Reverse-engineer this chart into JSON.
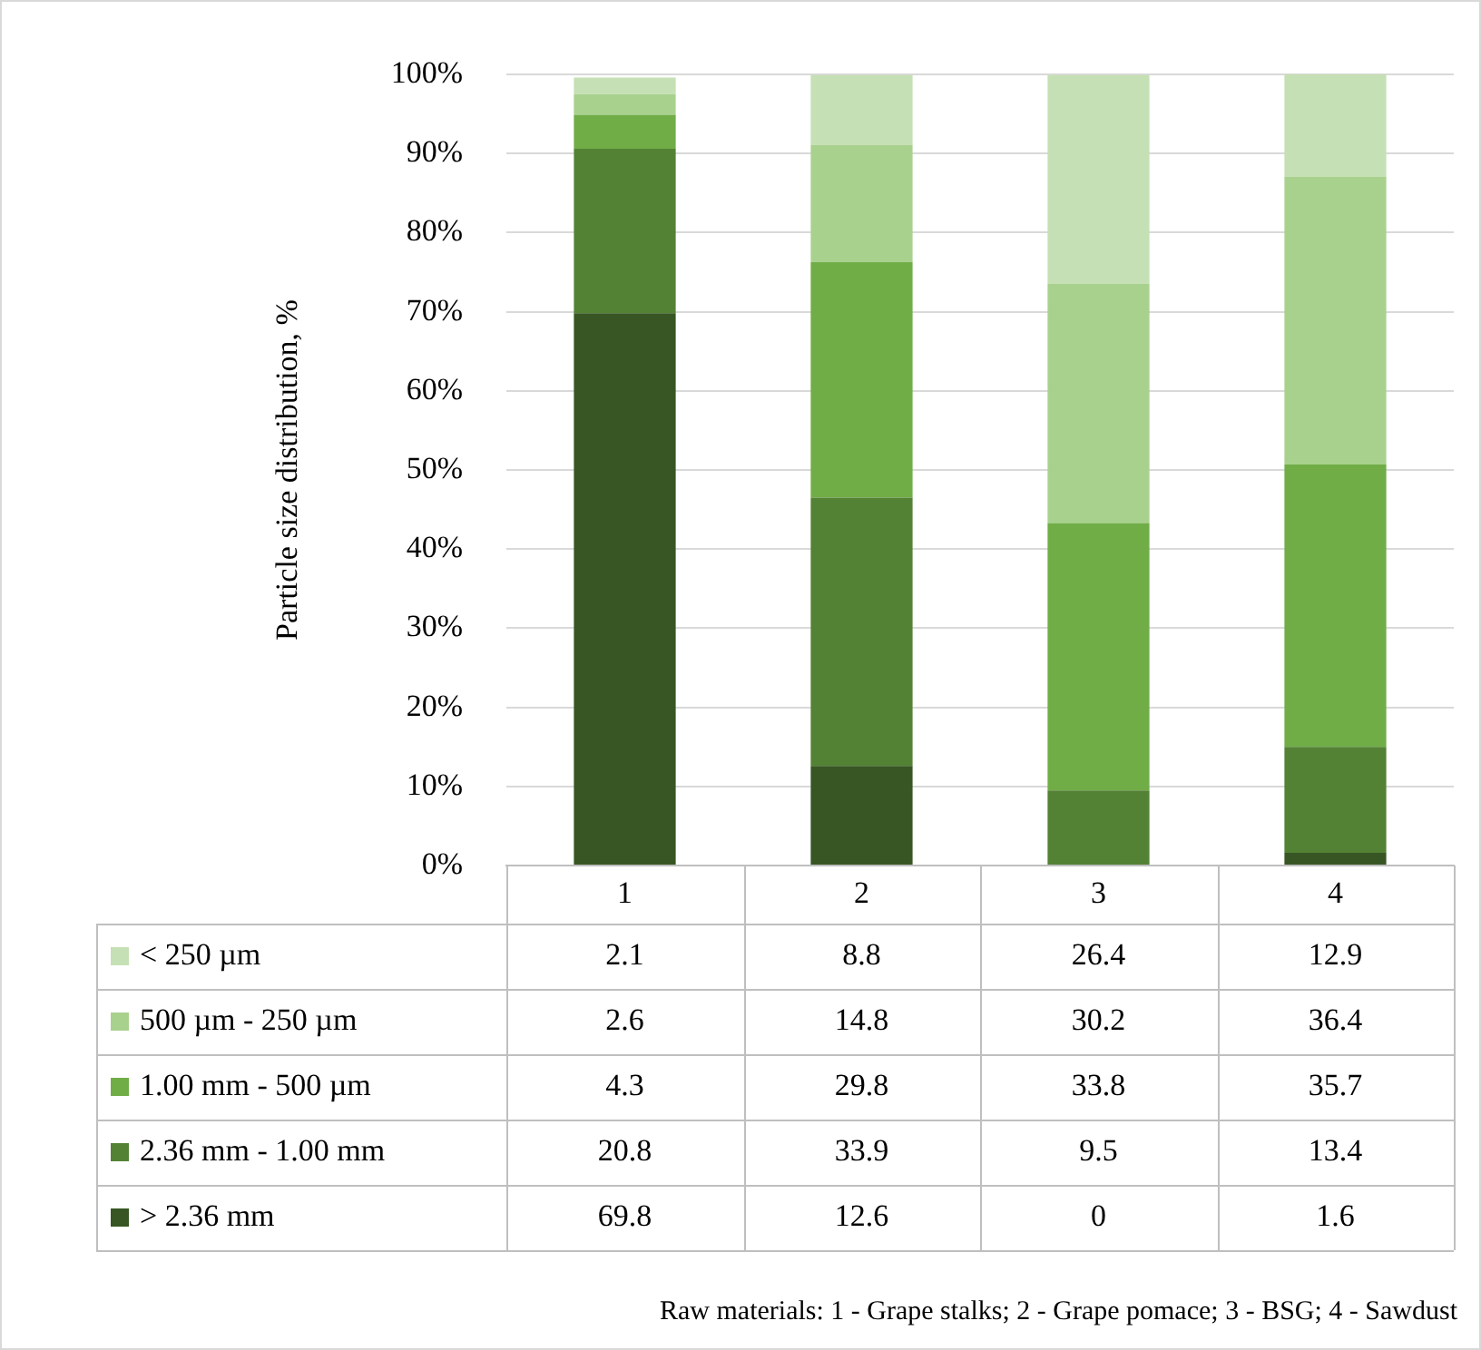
{
  "chart_data": {
    "type": "bar",
    "stacked": true,
    "ylabel": "Particle size distribution, %",
    "categories": [
      "1",
      "2",
      "3",
      "4"
    ],
    "series": [
      {
        "name": "> 2.36 mm",
        "color": "#375623",
        "values": [
          69.8,
          12.6,
          0,
          1.6
        ]
      },
      {
        "name": "2.36 mm - 1.00 mm",
        "color": "#548235",
        "values": [
          20.8,
          33.9,
          9.5,
          13.4
        ]
      },
      {
        "name": "1.00 mm - 500 µm",
        "color": "#70ad47",
        "values": [
          4.3,
          29.8,
          33.8,
          35.7
        ]
      },
      {
        "name": "500 µm - 250 µm",
        "color": "#a9d18e",
        "values": [
          2.6,
          14.8,
          30.2,
          36.4
        ]
      },
      {
        "name": "< 250 µm",
        "color": "#c5e0b4",
        "values": [
          2.1,
          8.8,
          26.4,
          12.9
        ]
      }
    ],
    "ylim": [
      0,
      100
    ],
    "yticks": [
      {
        "value": 0,
        "label": "0%"
      },
      {
        "value": 10,
        "label": "10%"
      },
      {
        "value": 20,
        "label": "20%"
      },
      {
        "value": 30,
        "label": "30%"
      },
      {
        "value": 40,
        "label": "40%"
      },
      {
        "value": 50,
        "label": "50%"
      },
      {
        "value": 60,
        "label": "60%"
      },
      {
        "value": 70,
        "label": "70%"
      },
      {
        "value": 80,
        "label": "80%"
      },
      {
        "value": 90,
        "label": "90%"
      },
      {
        "value": 100,
        "label": "100%"
      }
    ],
    "grid": "y",
    "legend": "bottom",
    "data_labels": true,
    "annotations": [
      "Raw materials: 1 - Grape stalks; 2 - Grape pomace; 3 - BSG; 4 - Sawdust"
    ]
  }
}
